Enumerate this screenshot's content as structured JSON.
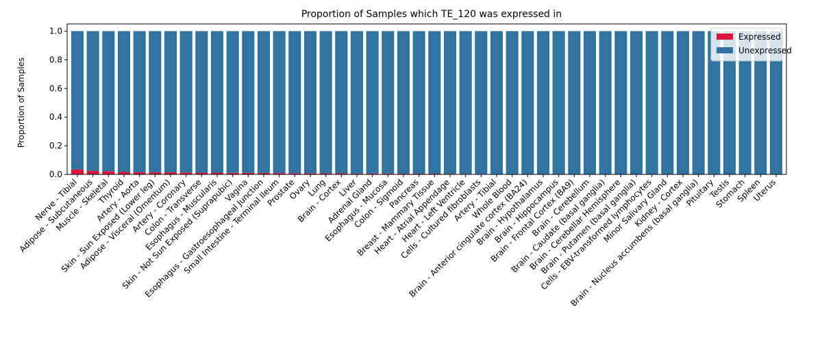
{
  "chart_data": {
    "type": "bar",
    "stacked": true,
    "title": "Proportion of Samples which TE_120 was expressed in",
    "xlabel": "",
    "ylabel": "Proportion of Samples",
    "ylim": [
      0,
      1.05
    ],
    "yticks": [
      "0.0",
      "0.2",
      "0.4",
      "0.6",
      "0.8",
      "1.0"
    ],
    "grid": false,
    "legend_position": "top-right",
    "categories": [
      "Nerve - Tibial",
      "Adipose - Subcutaneous",
      "Muscle - Skeletal",
      "Thyroid",
      "Artery - Aorta",
      "Skin - Sun Exposed (Lower leg)",
      "Adipose - Visceral (Omentum)",
      "Artery - Coronary",
      "Colon - Transverse",
      "Esophagus - Muscularis",
      "Skin - Not Sun Exposed (Suprapubic)",
      "Vagina",
      "Esophagus - Gastroesophageal Junction",
      "Small Intestine - Terminal Ileum",
      "Prostate",
      "Ovary",
      "Lung",
      "Brain - Cortex",
      "Liver",
      "Adrenal Gland",
      "Esophagus - Mucosa",
      "Colon - Sigmoid",
      "Pancreas",
      "Breast - Mammary Tissue",
      "Heart - Atrial Appendage",
      "Heart - Left Ventricle",
      "Cells - Cultured fibroblasts",
      "Artery - Tibial",
      "Whole Blood",
      "Brain - Anterior cingulate cortex (BA24)",
      "Brain - Hypothalamus",
      "Brain - Hippocampus",
      "Brain - Frontal Cortex (BA9)",
      "Brain - Cerebellum",
      "Brain - Caudate (basal ganglia)",
      "Brain - Cerebellar Hemisphere",
      "Brain - Putamen (basal ganglia)",
      "Cells - EBV-transformed lymphocytes",
      "Minor Salivary Gland",
      "Kidney - Cortex",
      "Brain - Nucleus accumbens (basal ganglia)",
      "Pituitary",
      "Testis",
      "Stomach",
      "Spleen",
      "Uterus"
    ],
    "series": [
      {
        "name": "Expressed",
        "color": "#dc143c",
        "values": [
          0.035,
          0.025,
          0.022,
          0.017,
          0.016,
          0.015,
          0.015,
          0.013,
          0.012,
          0.012,
          0.011,
          0.011,
          0.01,
          0.009,
          0.008,
          0.008,
          0.007,
          0.007,
          0.006,
          0.006,
          0.006,
          0.005,
          0.005,
          0.005,
          0.004,
          0.004,
          0.003,
          0,
          0,
          0,
          0,
          0,
          0,
          0,
          0,
          0,
          0,
          0,
          0,
          0,
          0,
          0,
          0,
          0,
          0,
          0
        ]
      },
      {
        "name": "Unexpressed",
        "color": "#3274a1",
        "values": [
          0.965,
          0.975,
          0.978,
          0.983,
          0.984,
          0.985,
          0.985,
          0.987,
          0.988,
          0.988,
          0.989,
          0.989,
          0.99,
          0.991,
          0.992,
          0.992,
          0.993,
          0.993,
          0.994,
          0.994,
          0.994,
          0.995,
          0.995,
          0.995,
          0.996,
          0.996,
          0.997,
          1,
          1,
          1,
          1,
          1,
          1,
          1,
          1,
          1,
          1,
          1,
          1,
          1,
          1,
          1,
          1,
          1,
          1,
          1
        ]
      }
    ]
  }
}
